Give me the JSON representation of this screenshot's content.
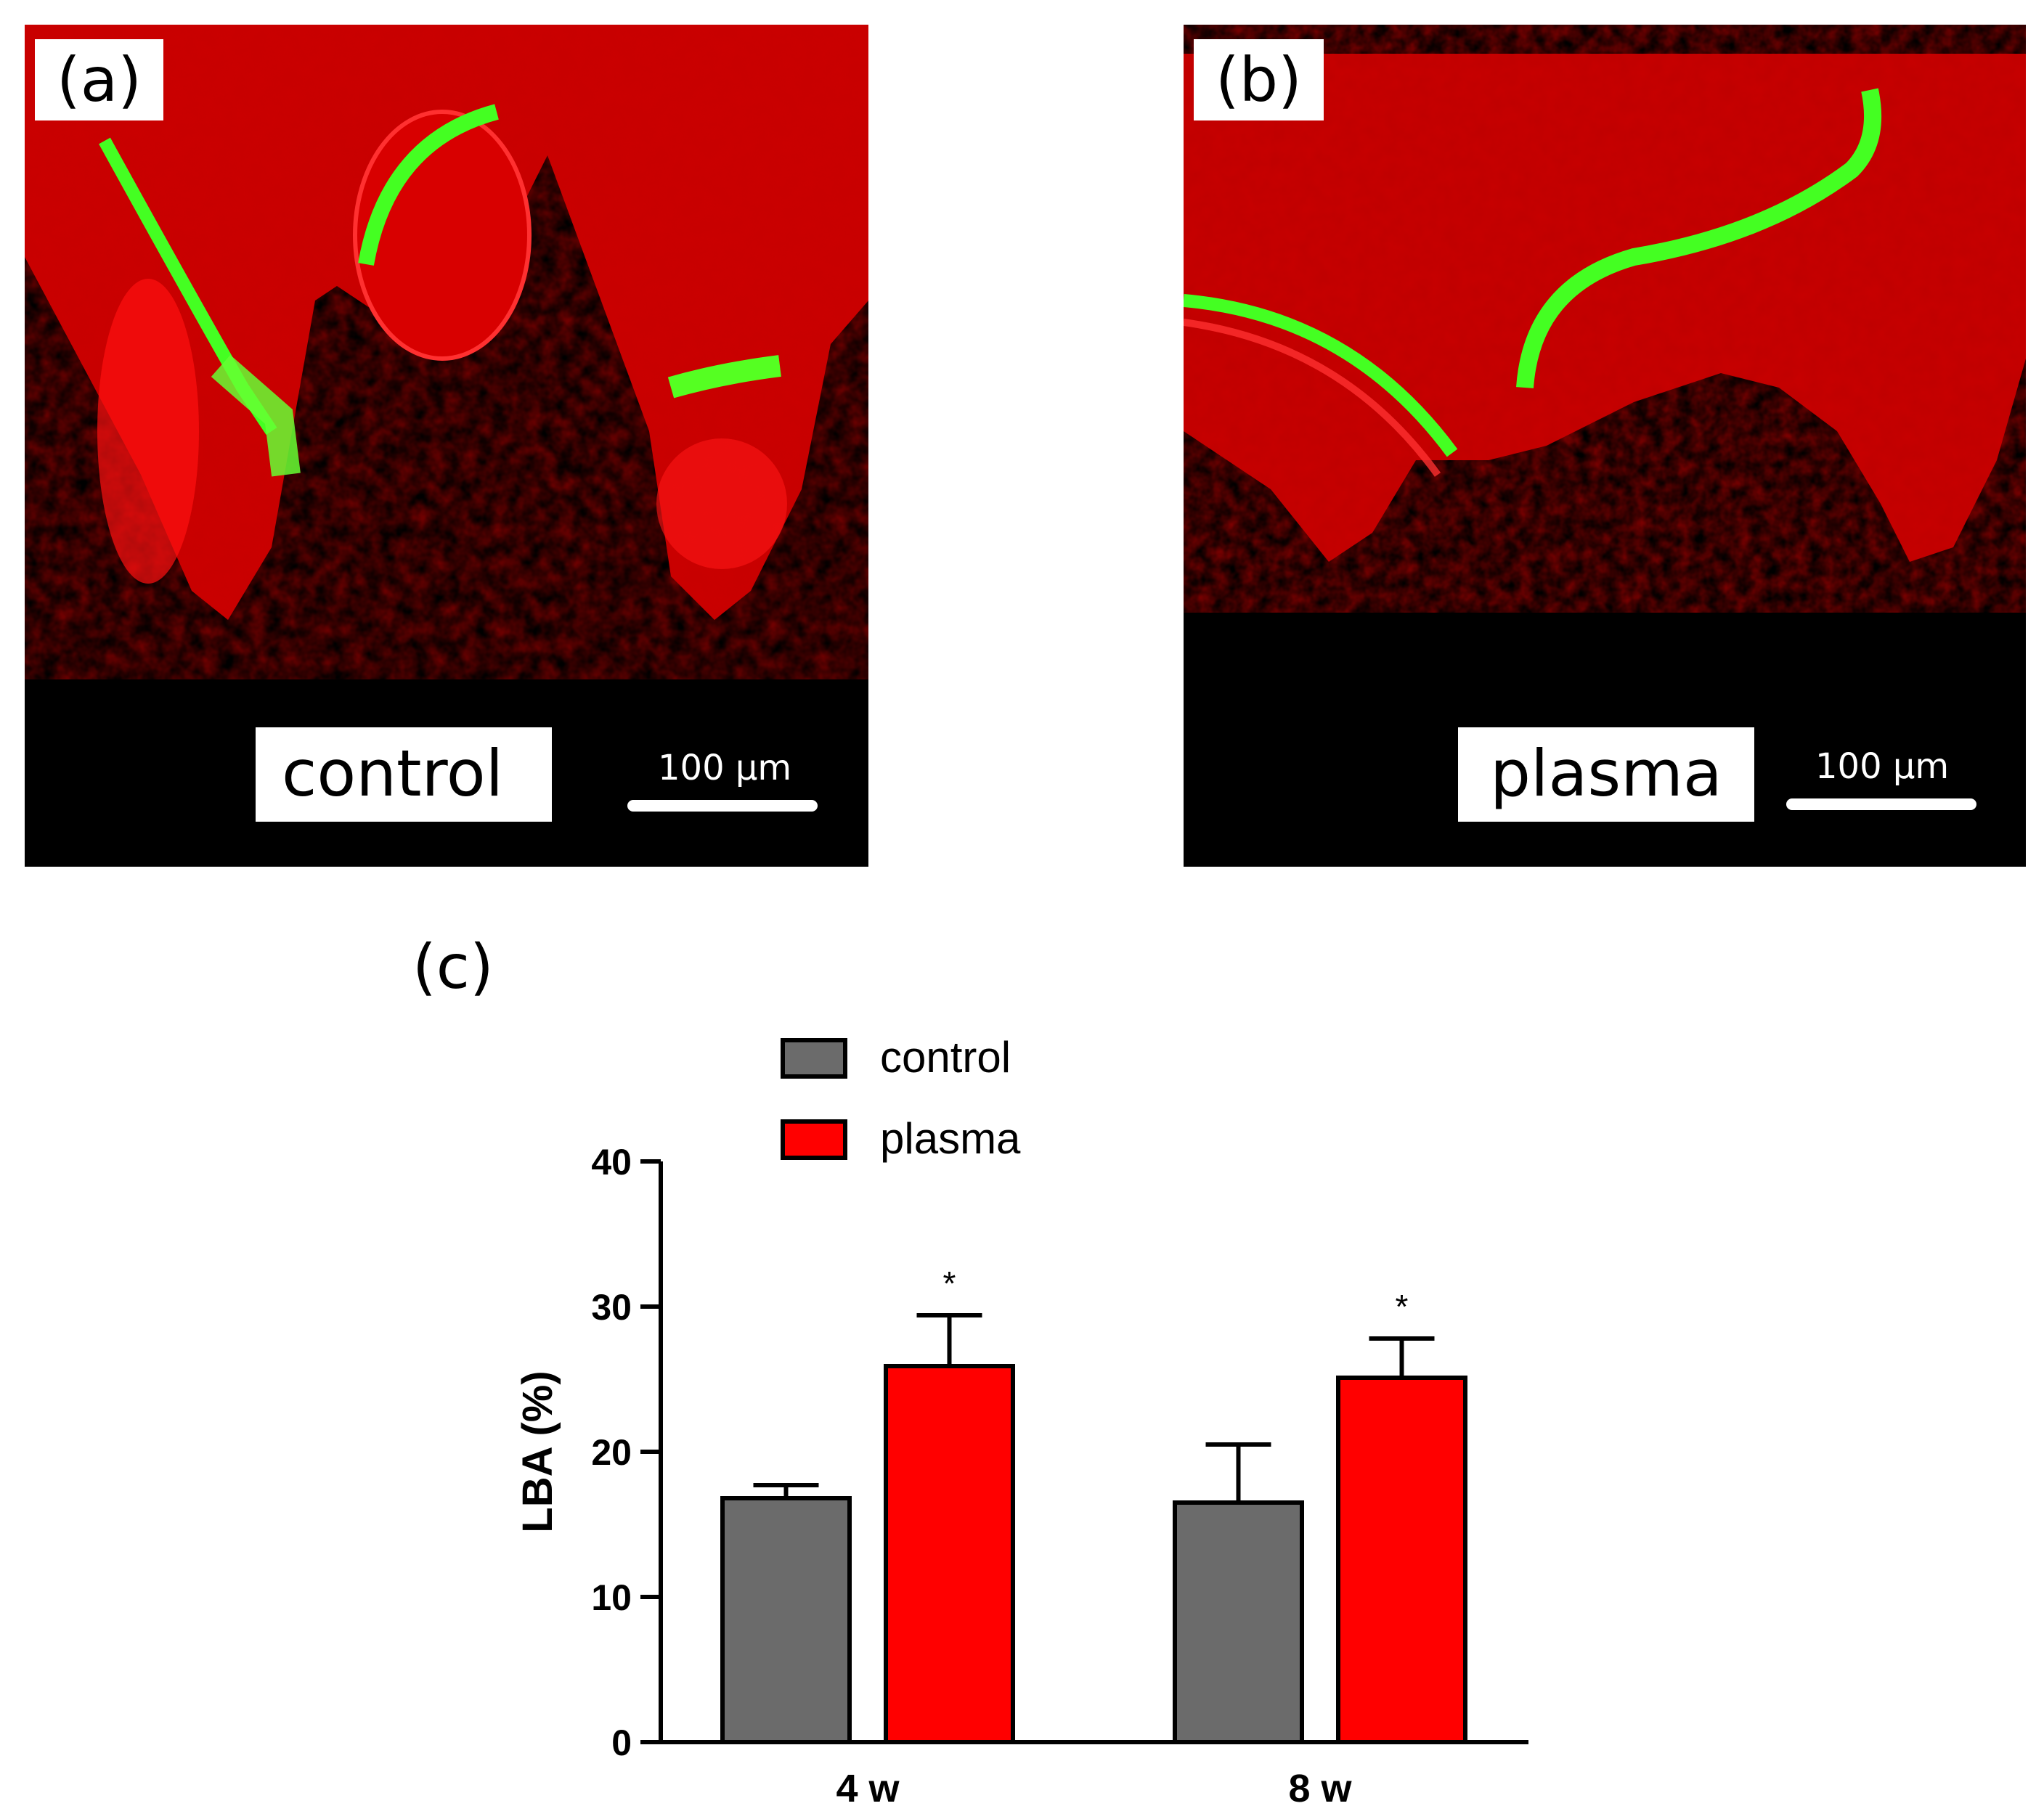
{
  "panels": [
    {
      "tag": "(a)",
      "label": "control",
      "scale": "100 µm"
    },
    {
      "tag": "(b)",
      "label": "plasma",
      "scale": "100 µm"
    }
  ],
  "panel_c_tag": "(c)",
  "colors": {
    "control": "#6b6b6b",
    "plasma": "#ff0000",
    "stain_red": "#d40000",
    "stain_green": "#33ff1a"
  },
  "chart_data": {
    "type": "bar",
    "categories": [
      "4 w",
      "8 w"
    ],
    "series": [
      {
        "name": "control",
        "values": [
          16.8,
          16.5
        ],
        "errors": [
          0.9,
          4.0
        ],
        "color": "#6b6b6b"
      },
      {
        "name": "plasma",
        "values": [
          25.9,
          25.1
        ],
        "errors": [
          3.5,
          2.7
        ],
        "color": "#ff0000",
        "annotations": [
          "*",
          "*"
        ]
      }
    ],
    "ylabel": "LBA (%)",
    "xlabel": "",
    "ylim": [
      0,
      40
    ],
    "yticks": [
      0,
      10,
      20,
      30,
      40
    ],
    "legend": "top-left",
    "grid": false
  }
}
